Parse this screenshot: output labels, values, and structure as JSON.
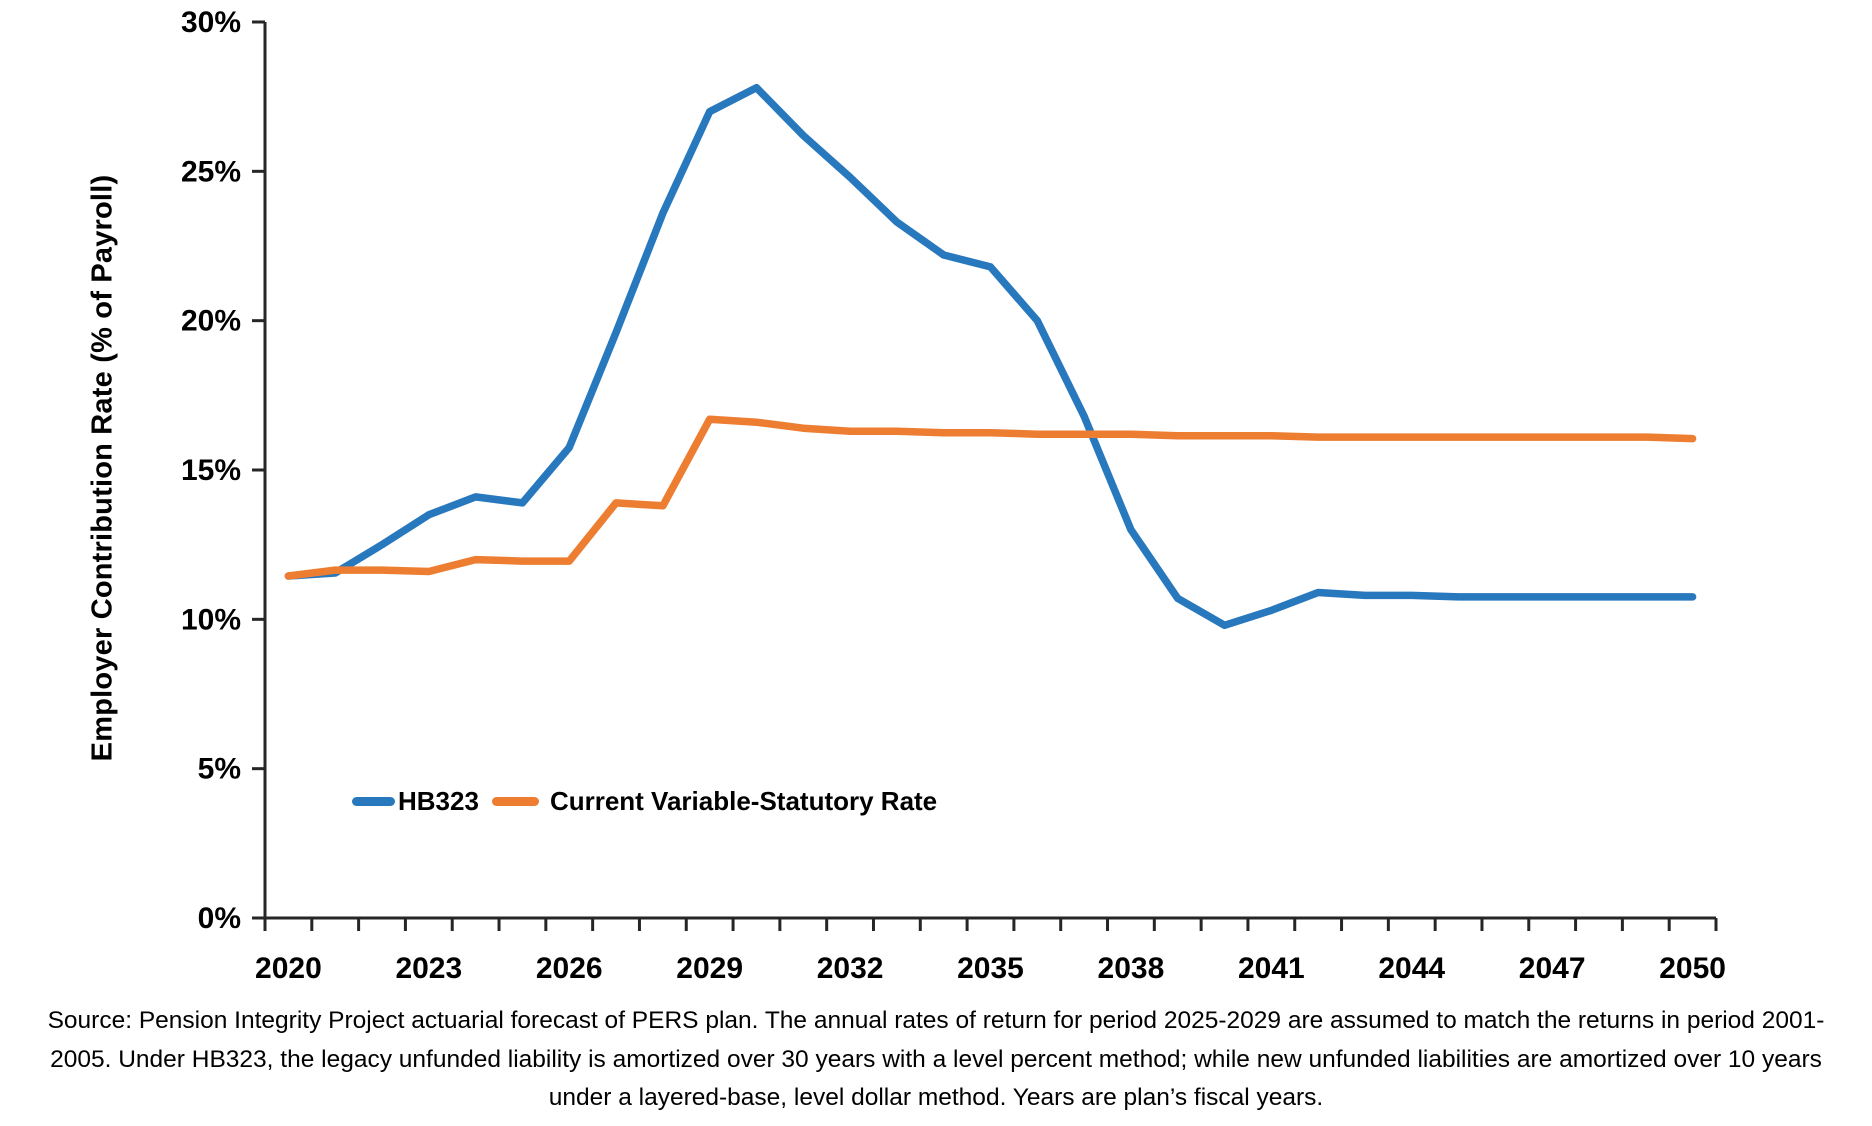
{
  "chart_data": {
    "type": "line",
    "title": "",
    "xlabel": "",
    "ylabel": "Employer Contribution Rate (% of Payroll)",
    "x": [
      2020,
      2021,
      2022,
      2023,
      2024,
      2025,
      2026,
      2027,
      2028,
      2029,
      2030,
      2031,
      2032,
      2033,
      2034,
      2035,
      2036,
      2037,
      2038,
      2039,
      2040,
      2041,
      2042,
      2043,
      2044,
      2045,
      2046,
      2047,
      2048,
      2049,
      2050
    ],
    "x_tick_labels": [
      "2020",
      "2023",
      "2026",
      "2029",
      "2032",
      "2035",
      "2038",
      "2041",
      "2044",
      "2047",
      "2050"
    ],
    "x_label_interval": 3,
    "y_ticks": [
      0,
      5,
      10,
      15,
      20,
      25,
      30
    ],
    "y_tick_labels": [
      "0%",
      "5%",
      "10%",
      "15%",
      "20%",
      "25%",
      "30%"
    ],
    "ylim": [
      0,
      30
    ],
    "grid": false,
    "legend_position": "inside-bottom-left",
    "axis_color": "#262626",
    "series": [
      {
        "name": "HB323",
        "color": "#2878BE",
        "values": [
          11.45,
          11.55,
          12.5,
          13.5,
          14.1,
          13.9,
          15.75,
          19.6,
          23.6,
          27.0,
          27.8,
          26.2,
          24.8,
          23.3,
          22.2,
          21.8,
          20.0,
          16.8,
          13.0,
          10.7,
          9.8,
          10.3,
          10.9,
          10.8,
          10.8,
          10.75,
          10.75,
          10.75,
          10.75,
          10.75,
          10.75
        ]
      },
      {
        "name": "Current Variable-Statutory Rate",
        "color": "#ED7D31",
        "values": [
          11.45,
          11.65,
          11.65,
          11.6,
          12.0,
          11.95,
          11.95,
          13.9,
          13.8,
          16.7,
          16.6,
          16.4,
          16.3,
          16.3,
          16.25,
          16.25,
          16.2,
          16.2,
          16.2,
          16.15,
          16.15,
          16.15,
          16.1,
          16.1,
          16.1,
          16.1,
          16.1,
          16.1,
          16.1,
          16.1,
          16.05
        ]
      }
    ]
  },
  "caption": {
    "line1": "Source: Pension Integrity Project actuarial forecast of PERS plan. The annual rates of return for period 2025-2029 are assumed to match the returns in period 2001-",
    "line2": "2005. Under HB323, the legacy unfunded liability is amortized over 30 years with a level percent method; while new unfunded liabilities are amortized over 10 years",
    "line3": "under a layered-base, level dollar method. Years are plan’s fiscal years."
  }
}
